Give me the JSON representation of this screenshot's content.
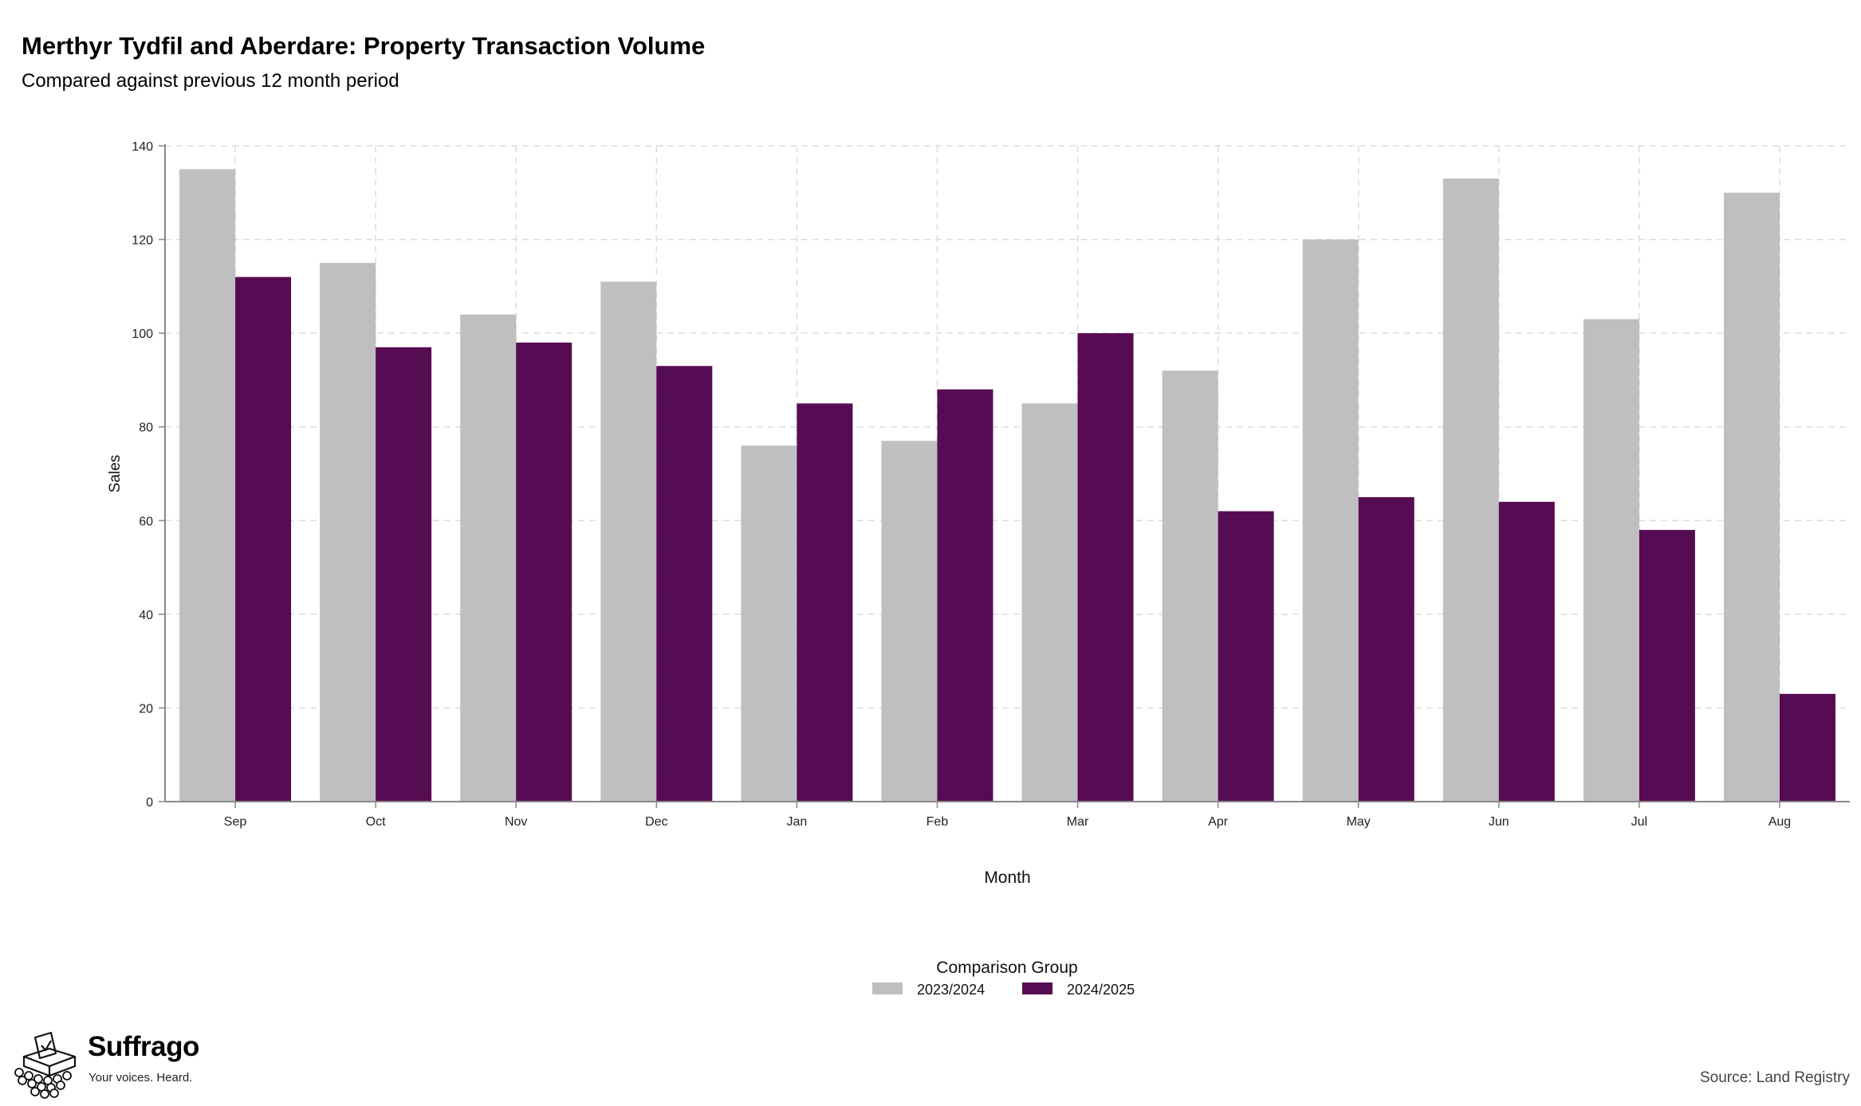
{
  "header": {
    "title": "Merthyr Tydfil and Aberdare: Property Transaction Volume",
    "subtitle": "Compared against previous 12 month period"
  },
  "footer": {
    "brand": "Suffrago",
    "tagline": "Your voices. Heard.",
    "source": "Source: Land Registry"
  },
  "colors": {
    "series_2023_2024": "#bfbfbf",
    "series_2024_2025": "#560c52",
    "grid": "#dcdcdc",
    "axis": "#888888"
  },
  "icons": [
    "ballot-box-icon"
  ],
  "chart_data": {
    "type": "bar",
    "title": "Merthyr Tydfil and Aberdare: Property Transaction Volume",
    "subtitle": "Compared against previous 12 month period",
    "xlabel": "Month",
    "ylabel": "Sales",
    "categories": [
      "Sep",
      "Oct",
      "Nov",
      "Dec",
      "Jan",
      "Feb",
      "Mar",
      "Apr",
      "May",
      "Jun",
      "Jul",
      "Aug"
    ],
    "ylim": [
      0,
      140
    ],
    "yticks": [
      0,
      20,
      40,
      60,
      80,
      100,
      120,
      140
    ],
    "grid": true,
    "legend_title": "Comparison Group",
    "legend_position": "bottom",
    "series": [
      {
        "name": "2023/2024",
        "color": "#bfbfbf",
        "values": [
          135,
          115,
          104,
          111,
          76,
          77,
          85,
          92,
          120,
          133,
          103,
          130
        ]
      },
      {
        "name": "2024/2025",
        "color": "#560c52",
        "values": [
          112,
          97,
          98,
          93,
          85,
          88,
          100,
          62,
          65,
          64,
          58,
          23
        ]
      }
    ]
  }
}
